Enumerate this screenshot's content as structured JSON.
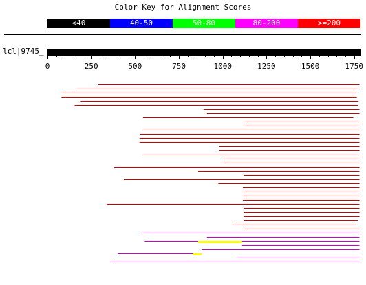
{
  "title": "Color Key for Alignment Scores",
  "key": [
    {
      "label": "<40",
      "color": "#000000"
    },
    {
      "label": "40-50",
      "color": "#0000ff"
    },
    {
      "label": "50-80",
      "color": "#00ff00"
    },
    {
      "label": "80-200",
      "color": "#ff00ff"
    },
    {
      "label": ">=200",
      "color": "#ff0000"
    }
  ],
  "query_label": "lcl|9745_",
  "axis": {
    "min": 0,
    "max": 1790,
    "ticks": [
      0,
      250,
      500,
      750,
      1000,
      1250,
      1500,
      1750
    ],
    "minor_step": 50
  },
  "hits": [
    {
      "start": 290,
      "end": 1780,
      "color": "#cc0000"
    },
    {
      "start": 165,
      "end": 1775,
      "color": "#cc0000"
    },
    {
      "start": 80,
      "end": 1760,
      "color": "#cc0000"
    },
    {
      "start": 80,
      "end": 1765,
      "color": "#cc0000"
    },
    {
      "start": 190,
      "end": 1775,
      "color": "#cc0000"
    },
    {
      "start": 155,
      "end": 1770,
      "color": "#cc0000"
    },
    {
      "start": 890,
      "end": 1780,
      "color": "#cc0000"
    },
    {
      "start": 910,
      "end": 1780,
      "color": "#cc0000"
    },
    {
      "start": 545,
      "end": 1745,
      "color": "#cc0000"
    },
    {
      "start": 1120,
      "end": 1780,
      "color": "#cc0000"
    },
    {
      "start": 1120,
      "end": 1780,
      "color": "#cc0000"
    },
    {
      "start": 545,
      "end": 1780,
      "color": "#cc0000"
    },
    {
      "start": 530,
      "end": 1780,
      "color": "#cc0000"
    },
    {
      "start": 525,
      "end": 1780,
      "color": "#cc0000"
    },
    {
      "start": 525,
      "end": 1780,
      "color": "#cc0000"
    },
    {
      "start": 980,
      "end": 1780,
      "color": "#cc0000"
    },
    {
      "start": 980,
      "end": 1780,
      "color": "#cc0000"
    },
    {
      "start": 545,
      "end": 1780,
      "color": "#cc0000"
    },
    {
      "start": 1010,
      "end": 1780,
      "color": "#cc0000"
    },
    {
      "start": 995,
      "end": 1780,
      "color": "#cc0000"
    },
    {
      "start": 380,
      "end": 1780,
      "color": "#cc0000"
    },
    {
      "start": 860,
      "end": 1780,
      "color": "#cc0000"
    },
    {
      "start": 1120,
      "end": 1780,
      "color": "#cc0000"
    },
    {
      "start": 435,
      "end": 1780,
      "color": "#cc0000"
    },
    {
      "start": 975,
      "end": 1780,
      "color": "#cc0000"
    },
    {
      "start": 1115,
      "end": 1780,
      "color": "#cc0000"
    },
    {
      "start": 1115,
      "end": 1780,
      "color": "#cc0000"
    },
    {
      "start": 1115,
      "end": 1780,
      "color": "#cc0000"
    },
    {
      "start": 1115,
      "end": 1780,
      "color": "#cc0000"
    },
    {
      "start": 340,
      "end": 1780,
      "color": "#cc0000"
    },
    {
      "start": 1120,
      "end": 1780,
      "color": "#cc0000"
    },
    {
      "start": 1120,
      "end": 1780,
      "color": "#cc0000"
    },
    {
      "start": 1120,
      "end": 1780,
      "color": "#cc0000"
    },
    {
      "start": 1120,
      "end": 1770,
      "color": "#cc0000"
    },
    {
      "start": 1060,
      "end": 1760,
      "color": "#cc0000"
    },
    {
      "start": 1120,
      "end": 1780,
      "color": "#cc0000"
    },
    {
      "segments": [
        [
          540,
          1780
        ]
      ],
      "color": "#cc00cc"
    },
    {
      "segments": [
        [
          910,
          1780
        ]
      ],
      "color": "#cc00cc"
    },
    {
      "segments": [
        [
          555,
          860,
          "#cc00cc"
        ],
        [
          860,
          1110,
          "#ffff00"
        ],
        [
          1110,
          1780,
          "#cc00cc"
        ]
      ]
    },
    {
      "segments": [
        [
          1110,
          1780
        ]
      ],
      "color": "#cc00cc"
    },
    {
      "segments": [
        [
          880,
          1780
        ]
      ],
      "color": "#cc00cc"
    },
    {
      "segments": [
        [
          400,
          830,
          "#cc00cc"
        ],
        [
          830,
          880,
          "#ffff00"
        ]
      ]
    },
    {
      "segments": [
        [
          1080,
          1780
        ]
      ],
      "color": "#cc00cc"
    },
    {
      "segments": [
        [
          360,
          1780
        ]
      ],
      "color": "#cc00cc"
    }
  ]
}
